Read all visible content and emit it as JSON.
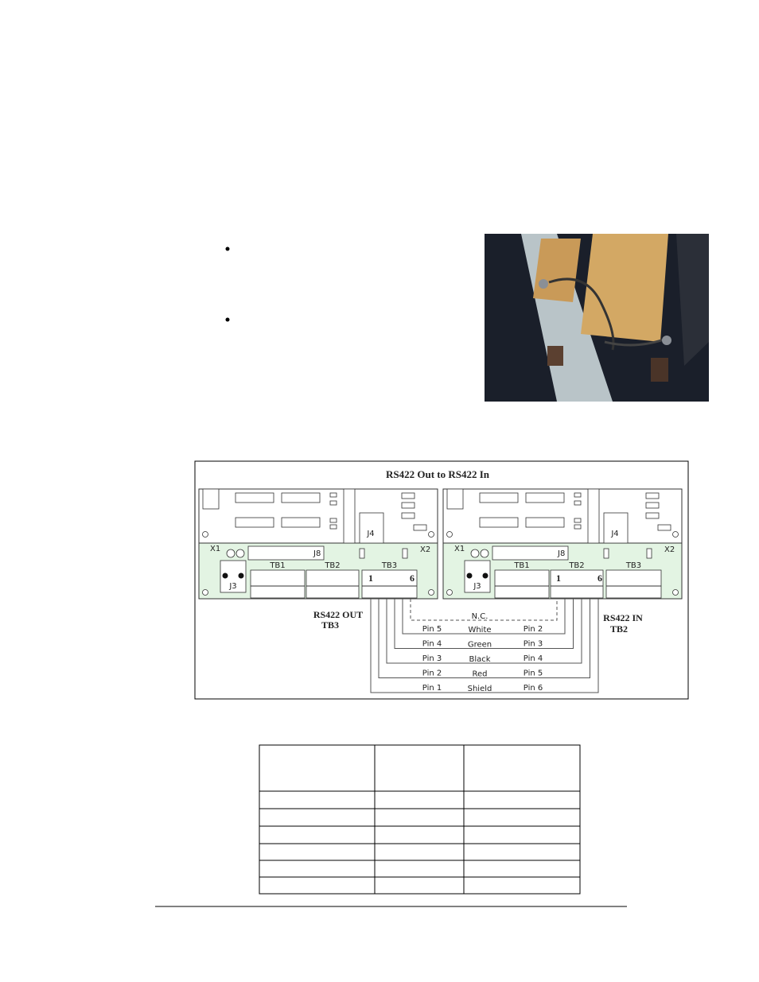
{
  "diagram": {
    "title": "RS422 Out to RS422 In",
    "boards": [
      {
        "labels": {
          "x1": "X1",
          "j8": "J8",
          "x2": "X2",
          "j3": "J3",
          "j4": "J4",
          "tb1": "TB1",
          "tb2": "TB2",
          "tb3": "TB3",
          "pin_first": "1",
          "pin_last": "6"
        }
      },
      {
        "labels": {
          "x1": "X1",
          "j8": "J8",
          "x2": "X2",
          "j3": "J3",
          "j4": "J4",
          "tb1": "TB1",
          "tb2": "TB2",
          "tb3": "TB3",
          "pin_first": "1",
          "pin_last": "6"
        }
      }
    ],
    "left_caption": [
      "RS422 OUT",
      "TB3"
    ],
    "right_caption": [
      "RS422 IN",
      "TB2"
    ],
    "not_connected": "N.C.",
    "wires": [
      {
        "from": "Pin 5",
        "color": "White",
        "to": "Pin 2"
      },
      {
        "from": "Pin 4",
        "color": "Green",
        "to": "Pin 3"
      },
      {
        "from": "Pin 3",
        "color": "Black",
        "to": "Pin 4"
      },
      {
        "from": "Pin 2",
        "color": "Red",
        "to": "Pin 5"
      },
      {
        "from": "Pin 1",
        "color": "Shield",
        "to": "Pin 6"
      }
    ]
  }
}
